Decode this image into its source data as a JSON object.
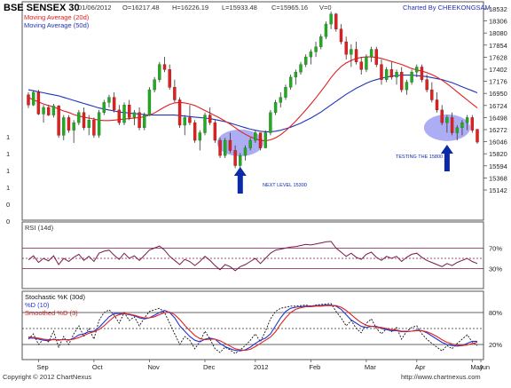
{
  "chart_data": [
    {
      "type": "candlestick",
      "title": "BSE SENSEX 30",
      "header": {
        "date": "01/06/2012",
        "open": "O=16217.48",
        "high": "H=16226.19",
        "low": "L=15933.48",
        "close": "C=15965.16",
        "volume": "V=0",
        "credit": "Charted By CHEEKONGSAM"
      },
      "legend": [
        {
          "name": "Moving Average (20d)",
          "color": "#e02020"
        },
        {
          "name": "Moving Average (50d)",
          "color": "#2233bb"
        }
      ],
      "ylim": [
        15000,
        18600
      ],
      "y_ticks": [
        "18532",
        "18306",
        "18080",
        "17854",
        "17628",
        "17402",
        "17176",
        "16950",
        "16724",
        "16498",
        "16272",
        "16046",
        "15820",
        "15594",
        "15368",
        "15142"
      ],
      "left_tick_labels": [
        "1",
        "1",
        "1",
        "1",
        "0",
        "0"
      ],
      "x_ticks": [
        "Sep",
        "Oct",
        "Nov",
        "Dec",
        "2012",
        "Feb",
        "Mar",
        "Apr",
        "May",
        "Jun"
      ],
      "candle_color": "#22aa22",
      "wick_color": "#333333",
      "candles": [
        [
          16900,
          16950,
          16640,
          16700
        ],
        [
          16700,
          16980,
          16680,
          16950
        ],
        [
          16950,
          17000,
          16500,
          16520
        ],
        [
          16520,
          16700,
          16350,
          16650
        ],
        [
          16650,
          16700,
          16480,
          16500
        ],
        [
          16500,
          16720,
          16450,
          16680
        ],
        [
          16680,
          16700,
          16050,
          16100
        ],
        [
          16100,
          16500,
          16000,
          16450
        ],
        [
          16450,
          16500,
          16150,
          16200
        ],
        [
          16200,
          16400,
          15950,
          16350
        ],
        [
          16350,
          16600,
          16300,
          16550
        ],
        [
          16550,
          16650,
          16200,
          16250
        ],
        [
          16250,
          16500,
          16100,
          16400
        ],
        [
          16400,
          16450,
          16050,
          16100
        ],
        [
          16100,
          16600,
          16050,
          16550
        ],
        [
          16550,
          16800,
          16500,
          16750
        ],
        [
          16750,
          16900,
          16650,
          16850
        ],
        [
          16850,
          16950,
          16550,
          16600
        ],
        [
          16600,
          16700,
          16300,
          16350
        ],
        [
          16350,
          16750,
          16300,
          16700
        ],
        [
          16700,
          16800,
          16400,
          16450
        ],
        [
          16450,
          16600,
          16300,
          16550
        ],
        [
          16550,
          16650,
          16200,
          16250
        ],
        [
          16250,
          16550,
          16200,
          16500
        ],
        [
          16500,
          17050,
          16480,
          17000
        ],
        [
          17000,
          17250,
          16950,
          17200
        ],
        [
          17200,
          17550,
          17150,
          17500
        ],
        [
          17500,
          17650,
          17350,
          17400
        ],
        [
          17400,
          17500,
          17000,
          17050
        ],
        [
          17050,
          17200,
          16750,
          16800
        ],
        [
          16800,
          16850,
          16250,
          16300
        ],
        [
          16300,
          16500,
          16100,
          16450
        ],
        [
          16450,
          16700,
          16300,
          16350
        ],
        [
          16350,
          16400,
          15950,
          16000
        ],
        [
          16000,
          16200,
          15800,
          16150
        ],
        [
          16150,
          16550,
          16100,
          16500
        ],
        [
          16500,
          16650,
          16300,
          16350
        ],
        [
          16350,
          16400,
          15950,
          16000
        ],
        [
          16000,
          16050,
          15650,
          15700
        ],
        [
          15700,
          16050,
          15650,
          16000
        ],
        [
          16000,
          16150,
          15750,
          15800
        ],
        [
          15800,
          15900,
          15450,
          15500
        ],
        [
          15500,
          15750,
          15400,
          15700
        ],
        [
          15700,
          15900,
          15600,
          15850
        ],
        [
          15850,
          16050,
          15800,
          16000
        ],
        [
          16000,
          16200,
          15950,
          16150
        ],
        [
          16150,
          16150,
          15800,
          15850
        ],
        [
          15850,
          16200,
          15850,
          16150
        ],
        [
          16150,
          16600,
          16100,
          16550
        ],
        [
          16550,
          16800,
          16500,
          16750
        ],
        [
          16750,
          16950,
          16650,
          16850
        ],
        [
          16850,
          17100,
          16800,
          17050
        ],
        [
          17050,
          17300,
          17000,
          17250
        ],
        [
          17250,
          17400,
          17100,
          17350
        ],
        [
          17350,
          17550,
          17300,
          17500
        ],
        [
          17500,
          17700,
          17450,
          17650
        ],
        [
          17650,
          17800,
          17500,
          17750
        ],
        [
          17750,
          17950,
          17650,
          17850
        ],
        [
          17850,
          18100,
          17800,
          18050
        ],
        [
          18050,
          18350,
          18000,
          18300
        ],
        [
          18300,
          18550,
          18200,
          18500
        ],
        [
          18500,
          18520,
          18150,
          18200
        ],
        [
          18200,
          18300,
          17900,
          17950
        ],
        [
          17950,
          18050,
          17600,
          17700
        ],
        [
          17700,
          17900,
          17450,
          17800
        ],
        [
          17800,
          17950,
          17500,
          17550
        ],
        [
          17550,
          17650,
          17300,
          17400
        ],
        [
          17400,
          17700,
          17350,
          17650
        ],
        [
          17650,
          17850,
          17550,
          17800
        ],
        [
          17800,
          17850,
          17450,
          17500
        ],
        [
          17500,
          17600,
          17100,
          17200
        ],
        [
          17200,
          17450,
          17150,
          17400
        ],
        [
          17400,
          17550,
          17200,
          17250
        ],
        [
          17250,
          17400,
          17100,
          17350
        ],
        [
          17350,
          17450,
          16950,
          17000
        ],
        [
          17000,
          17200,
          16900,
          17150
        ],
        [
          17150,
          17400,
          17100,
          17350
        ],
        [
          17350,
          17500,
          17250,
          17450
        ],
        [
          17450,
          17500,
          17150,
          17200
        ],
        [
          17200,
          17300,
          16950,
          17000
        ],
        [
          17000,
          17150,
          16750,
          16800
        ],
        [
          16800,
          16950,
          16550,
          16600
        ],
        [
          16600,
          16700,
          16300,
          16350
        ],
        [
          16350,
          16500,
          16150,
          16450
        ],
        [
          16450,
          16550,
          16100,
          16150
        ],
        [
          16150,
          16300,
          16000,
          16250
        ],
        [
          16250,
          16400,
          16100,
          16350
        ],
        [
          16350,
          16500,
          16200,
          16450
        ],
        [
          16450,
          16500,
          16150,
          16200
        ],
        [
          16217.48,
          16226.19,
          15933.48,
          15965.16
        ]
      ],
      "ma20": [
        16850,
        16800,
        16760,
        16720,
        16690,
        16660,
        16620,
        16580,
        16550,
        16510,
        16480,
        16460,
        16440,
        16420,
        16400,
        16390,
        16390,
        16400,
        16410,
        16420,
        16430,
        16440,
        16450,
        16470,
        16500,
        16540,
        16600,
        16660,
        16710,
        16740,
        16750,
        16740,
        16720,
        16690,
        16640,
        16590,
        16540,
        16490,
        16440,
        16380,
        16320,
        16250,
        16180,
        16120,
        16070,
        16030,
        16000,
        15990,
        16010,
        16050,
        16110,
        16190,
        16280,
        16380,
        16490,
        16600,
        16720,
        16840,
        16970,
        17100,
        17240,
        17360,
        17460,
        17530,
        17580,
        17620,
        17640,
        17650,
        17650,
        17640,
        17620,
        17590,
        17560,
        17530,
        17500,
        17460,
        17420,
        17390,
        17370,
        17340,
        17300,
        17250,
        17190,
        17120,
        17040,
        16960,
        16880,
        16800,
        16720,
        16640
      ],
      "ma50": [
        17000,
        16980,
        16960,
        16940,
        16920,
        16900,
        16880,
        16850,
        16820,
        16790,
        16760,
        16730,
        16700,
        16670,
        16640,
        16620,
        16600,
        16580,
        16560,
        16550,
        16540,
        16530,
        16520,
        16510,
        16500,
        16500,
        16500,
        16500,
        16500,
        16500,
        16490,
        16480,
        16470,
        16460,
        16450,
        16440,
        16430,
        16410,
        16390,
        16370,
        16340,
        16310,
        16280,
        16250,
        16220,
        16200,
        16180,
        16170,
        16170,
        16180,
        16200,
        16230,
        16260,
        16300,
        16340,
        16390,
        16440,
        16500,
        16560,
        16630,
        16700,
        16770,
        16840,
        16910,
        16970,
        17030,
        17080,
        17130,
        17170,
        17200,
        17230,
        17250,
        17270,
        17280,
        17290,
        17290,
        17290,
        17280,
        17270,
        17260,
        17240,
        17220,
        17200,
        17170,
        17140,
        17100,
        17060,
        17020,
        16980,
        16940
      ],
      "annotations": [
        "NEXT LEVEL 15300",
        "TESTING THE 15800"
      ],
      "marked_candles": [
        40,
        86
      ]
    },
    {
      "type": "line",
      "title": "RSI (14d)",
      "ylim": [
        0,
        100
      ],
      "y_ticks": [
        "70%",
        "30%"
      ],
      "reference_levels": [
        70,
        50,
        30
      ],
      "series": [
        {
          "name": "RSI (14d)",
          "color": "#7a1a4a",
          "values": [
            47,
            55,
            42,
            50,
            45,
            55,
            38,
            50,
            44,
            52,
            58,
            46,
            54,
            44,
            60,
            64,
            66,
            56,
            48,
            60,
            50,
            55,
            46,
            56,
            66,
            70,
            74,
            66,
            54,
            46,
            38,
            48,
            44,
            36,
            44,
            54,
            46,
            36,
            28,
            38,
            34,
            26,
            34,
            38,
            44,
            50,
            40,
            50,
            60,
            66,
            68,
            70,
            72,
            73,
            75,
            77,
            76,
            78,
            80,
            82,
            83,
            70,
            62,
            54,
            60,
            52,
            48,
            58,
            62,
            52,
            46,
            54,
            50,
            54,
            44,
            52,
            58,
            60,
            52,
            46,
            42,
            38,
            34,
            40,
            36,
            42,
            46,
            50,
            44,
            40
          ]
        }
      ]
    },
    {
      "type": "line",
      "title": "Stochastic %K (30d)",
      "ylim": [
        0,
        100
      ],
      "y_ticks": [
        "80%",
        "20%"
      ],
      "reference_levels": [
        80,
        50,
        20
      ],
      "series": [
        {
          "name": "Stochastic %K (30d)",
          "color": "#111111",
          "values": [
            30,
            40,
            20,
            30,
            25,
            45,
            15,
            35,
            20,
            40,
            55,
            35,
            50,
            30,
            65,
            80,
            85,
            75,
            60,
            80,
            65,
            72,
            55,
            70,
            82,
            85,
            88,
            80,
            60,
            40,
            20,
            35,
            28,
            12,
            25,
            45,
            30,
            12,
            5,
            15,
            10,
            3,
            10,
            18,
            28,
            40,
            25,
            45,
            68,
            82,
            88,
            90,
            92,
            92,
            93,
            94,
            92,
            94,
            95,
            96,
            97,
            82,
            70,
            55,
            65,
            50,
            42,
            60,
            68,
            50,
            40,
            50,
            44,
            52,
            30,
            45,
            52,
            55,
            40,
            30,
            22,
            15,
            8,
            18,
            12,
            22,
            30,
            38,
            25,
            18
          ]
        },
        {
          "name": "%D (10)",
          "color": "#2233cc",
          "values": [
            32,
            32,
            30,
            28,
            27,
            30,
            28,
            30,
            28,
            32,
            38,
            40,
            44,
            45,
            52,
            62,
            72,
            78,
            78,
            78,
            76,
            74,
            70,
            68,
            70,
            75,
            80,
            84,
            80,
            70,
            55,
            45,
            35,
            28,
            25,
            30,
            32,
            30,
            22,
            16,
            12,
            9,
            8,
            10,
            15,
            22,
            28,
            32,
            40,
            55,
            70,
            82,
            88,
            90,
            91,
            92,
            92,
            93,
            93,
            94,
            94,
            92,
            86,
            76,
            66,
            60,
            54,
            52,
            54,
            54,
            50,
            48,
            46,
            46,
            44,
            44,
            45,
            47,
            46,
            42,
            36,
            30,
            24,
            20,
            18,
            17,
            18,
            22,
            26,
            26
          ]
        },
        {
          "name": "Smoothed %D (3)",
          "color": "#dd2222",
          "values": [
            34,
            33,
            32,
            30,
            29,
            29,
            29,
            29,
            29,
            30,
            33,
            37,
            41,
            44,
            48,
            55,
            64,
            72,
            76,
            78,
            77,
            75,
            72,
            70,
            70,
            72,
            76,
            80,
            81,
            76,
            67,
            56,
            46,
            37,
            31,
            29,
            30,
            30,
            27,
            22,
            17,
            12,
            10,
            9,
            11,
            16,
            22,
            28,
            34,
            44,
            58,
            70,
            80,
            86,
            89,
            91,
            91,
            92,
            92,
            93,
            93,
            93,
            90,
            84,
            76,
            68,
            61,
            56,
            54,
            53,
            52,
            50,
            48,
            47,
            45,
            45,
            45,
            46,
            46,
            44,
            40,
            35,
            29,
            24,
            21,
            19,
            18,
            19,
            22,
            24
          ]
        }
      ]
    }
  ],
  "x_axis": {
    "labels": [
      "Sep",
      "Oct",
      "Nov",
      "Dec",
      "2012",
      "Feb",
      "Mar",
      "Apr",
      "May",
      "Jun"
    ]
  },
  "footer": {
    "copyright": "Copyright © 2012 ChartNexus",
    "url": "http://www.chartnexus.com"
  }
}
